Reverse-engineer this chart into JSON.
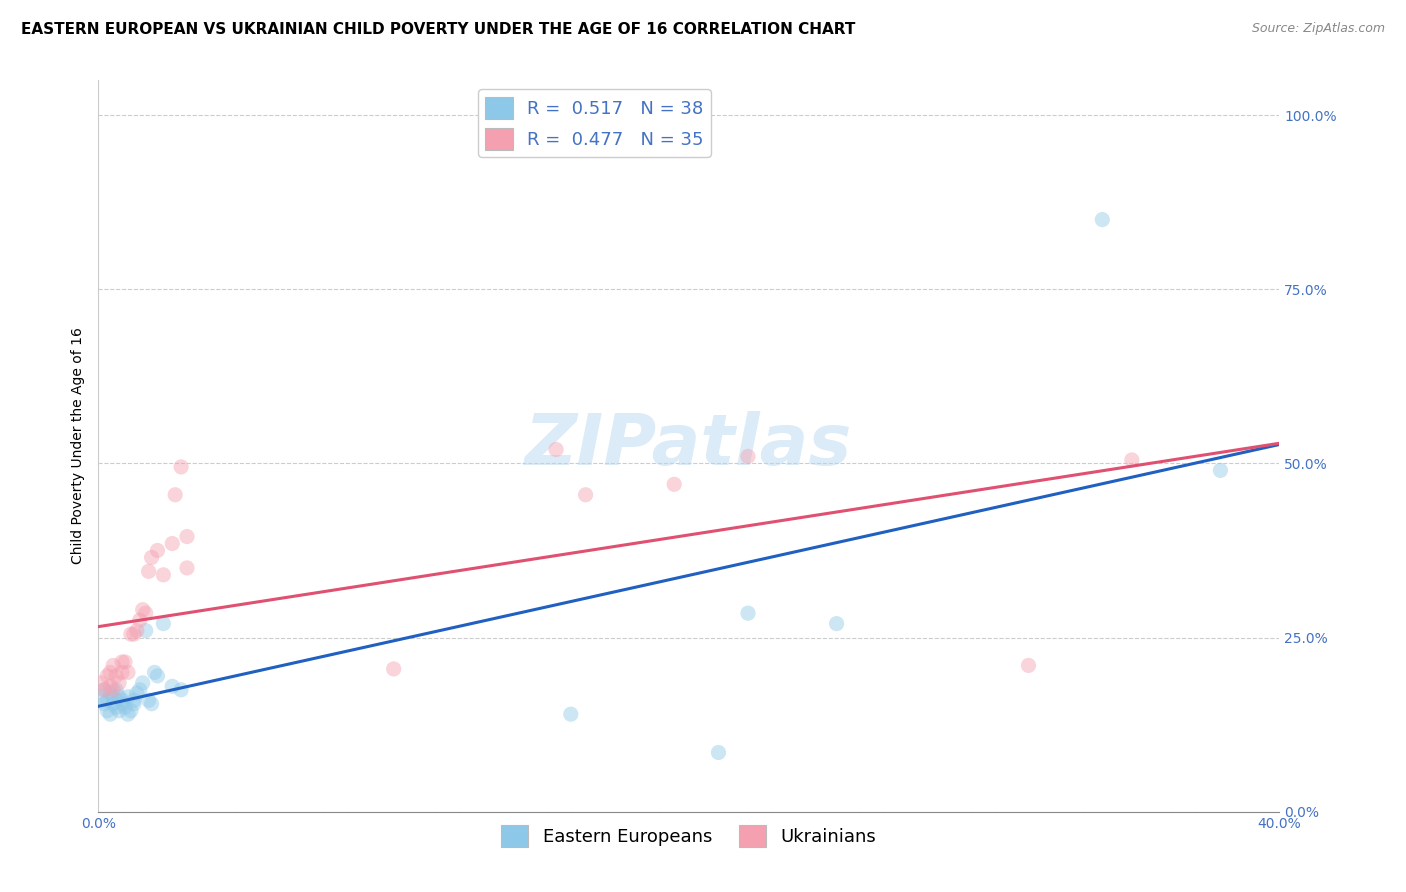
{
  "title": "EASTERN EUROPEAN VS UKRAINIAN CHILD POVERTY UNDER THE AGE OF 16 CORRELATION CHART",
  "source": "Source: ZipAtlas.com",
  "ylabel": "Child Poverty Under the Age of 16",
  "xlim": [
    0.0,
    0.4
  ],
  "ylim": [
    0.0,
    1.05
  ],
  "yticks": [
    0.0,
    0.25,
    0.5,
    0.75,
    1.0
  ],
  "ytick_labels": [
    "0.0%",
    "25.0%",
    "50.0%",
    "75.0%",
    "100.0%"
  ],
  "xticks": [
    0.0,
    0.1,
    0.2,
    0.3,
    0.4
  ],
  "xtick_labels": [
    "0.0%",
    "",
    "",
    "",
    "40.0%"
  ],
  "r_eastern": 0.517,
  "n_eastern": 38,
  "r_ukrainian": 0.477,
  "n_ukrainian": 35,
  "color_eastern": "#8ec8e8",
  "color_ukrainian": "#f4a0b0",
  "color_eastern_line": "#2060c0",
  "color_ukrainian_line": "#e05070",
  "watermark_text": "ZIPatlas",
  "legend_label_eastern": "Eastern Europeans",
  "legend_label_ukrainian": "Ukrainians",
  "eastern_x": [
    0.001,
    0.002,
    0.002,
    0.003,
    0.003,
    0.004,
    0.004,
    0.005,
    0.005,
    0.006,
    0.006,
    0.007,
    0.007,
    0.008,
    0.008,
    0.009,
    0.01,
    0.01,
    0.011,
    0.012,
    0.012,
    0.013,
    0.014,
    0.015,
    0.016,
    0.017,
    0.018,
    0.019,
    0.02,
    0.022,
    0.025,
    0.028,
    0.16,
    0.21,
    0.22,
    0.25,
    0.34,
    0.38
  ],
  "eastern_y": [
    0.165,
    0.155,
    0.175,
    0.145,
    0.16,
    0.14,
    0.17,
    0.155,
    0.165,
    0.15,
    0.175,
    0.145,
    0.165,
    0.155,
    0.16,
    0.15,
    0.14,
    0.165,
    0.145,
    0.16,
    0.155,
    0.17,
    0.175,
    0.185,
    0.26,
    0.16,
    0.155,
    0.2,
    0.195,
    0.27,
    0.18,
    0.175,
    0.14,
    0.085,
    0.285,
    0.27,
    0.85,
    0.49
  ],
  "ukrainian_x": [
    0.001,
    0.002,
    0.003,
    0.004,
    0.004,
    0.005,
    0.005,
    0.006,
    0.007,
    0.008,
    0.008,
    0.009,
    0.01,
    0.011,
    0.012,
    0.013,
    0.014,
    0.015,
    0.016,
    0.017,
    0.018,
    0.02,
    0.022,
    0.025,
    0.026,
    0.028,
    0.03,
    0.03,
    0.1,
    0.155,
    0.165,
    0.195,
    0.22,
    0.315,
    0.35
  ],
  "ukrainian_y": [
    0.185,
    0.175,
    0.195,
    0.2,
    0.18,
    0.175,
    0.21,
    0.195,
    0.185,
    0.215,
    0.2,
    0.215,
    0.2,
    0.255,
    0.255,
    0.26,
    0.275,
    0.29,
    0.285,
    0.345,
    0.365,
    0.375,
    0.34,
    0.385,
    0.455,
    0.495,
    0.395,
    0.35,
    0.205,
    0.52,
    0.455,
    0.47,
    0.51,
    0.21,
    0.505
  ],
  "background_color": "#ffffff",
  "grid_color": "#cccccc",
  "title_fontsize": 11,
  "axis_label_fontsize": 10,
  "tick_fontsize": 10,
  "legend_fontsize": 13,
  "marker_size": 120,
  "marker_alpha": 0.45,
  "line_width": 2.2
}
